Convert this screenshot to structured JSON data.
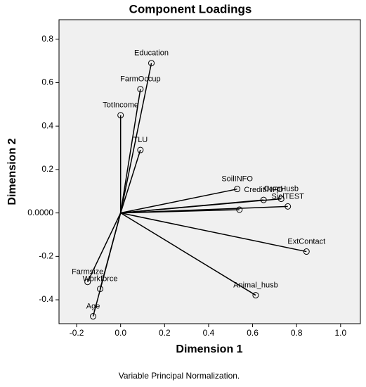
{
  "chart_data": {
    "type": "scatter",
    "title": "Component Loadings",
    "x_label": "Dimension 1",
    "y_label": "Dimension 2",
    "footnote": "Variable Principal Normalization.",
    "labels": [
      "Education",
      "FarmOccup",
      "TotIncome",
      "TLU",
      "SoilINFO",
      "CreditINFO",
      "CropHusb",
      "SiolTEST",
      null,
      "ExtContact",
      "Animal_husb",
      "Farmsize",
      "Workforce",
      "Age"
    ],
    "x": [
      0.14,
      0.09,
      0.0,
      0.09,
      0.53,
      0.65,
      0.73,
      0.76,
      0.54,
      0.845,
      0.614,
      -0.15,
      -0.093,
      -0.125
    ],
    "y": [
      0.69,
      0.57,
      0.45,
      0.29,
      0.11,
      0.06,
      0.065,
      0.03,
      0.015,
      -0.178,
      -0.379,
      -0.318,
      -0.35,
      -0.476
    ],
    "xlim": [
      -0.28,
      1.09
    ],
    "ylim": [
      -0.51,
      0.89
    ],
    "xticks": [
      -0.2,
      {
        "value": 0,
        "label": "0.0"
      },
      0.2,
      0.4,
      0.6,
      0.8,
      {
        "value": 1,
        "label": "1.0"
      }
    ],
    "yticks": [
      -0.4,
      -0.2,
      {
        "value": 0,
        "label": "0.0000"
      },
      0.2,
      0.4,
      0.6,
      0.8
    ],
    "vectors": true,
    "background": "#f0f0f0"
  }
}
